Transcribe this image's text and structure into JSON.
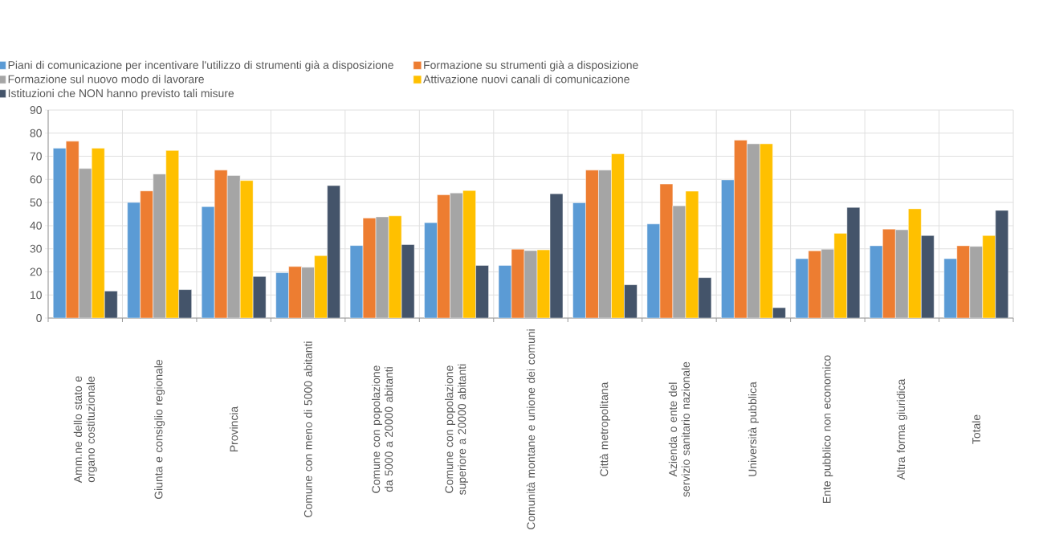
{
  "chart_data": {
    "type": "bar",
    "categories": [
      "Amm.ne dello stato  e organo costituzionale",
      "Giunta e consiglio regionale",
      "Provincia",
      "Comune con meno di 5000 abitanti",
      "Comune con popolazione da 5000 a 20000 abitanti",
      "Comune con popolazione superiore a 20000 abitanti",
      "Comunità montane e unione dei comuni",
      "Città metropolitana",
      "Azienda o ente del servizio sanitario nazionale",
      "Università pubblica",
      "Ente pubblico non economico",
      "Altra forma giuridica",
      "Totale"
    ],
    "series": [
      {
        "name": "Piani di comunicazione per incentivare l'utilizzo di strumenti già a disposizione",
        "color": "#5b9bd5",
        "values": [
          73.5,
          50,
          48.2,
          19.6,
          31.4,
          41.3,
          22.8,
          49.9,
          40.7,
          59.8,
          25.7,
          31.3,
          25.7
        ]
      },
      {
        "name": "Formazione su strumenti già a disposizione",
        "color": "#ed7d31",
        "values": [
          76.5,
          55,
          64,
          22.3,
          43.3,
          53.3,
          29.8,
          64,
          58,
          77,
          29.1,
          38.5,
          31.3
        ]
      },
      {
        "name": "Formazione sul nuovo modo di lavorare",
        "color": "#a5a5a5",
        "values": [
          64.7,
          62.3,
          61.7,
          22,
          43.8,
          54.1,
          29.2,
          64,
          48.6,
          75.4,
          29.8,
          38.2,
          31
        ]
      },
      {
        "name": "Attivazione nuovi canali di comunicazione",
        "color": "#ffc000",
        "values": [
          73.5,
          72.5,
          59.5,
          27,
          44.2,
          55.2,
          29.5,
          71.1,
          54.9,
          75.4,
          36.7,
          47.3,
          35.7
        ]
      },
      {
        "name": "Istituzioni che NON hanno previsto tali misure",
        "color": "#44546a",
        "values": [
          11.7,
          12.3,
          18,
          57.3,
          31.8,
          22.8,
          53.8,
          14.4,
          17.5,
          4.5,
          47.9,
          35.7,
          46.6
        ]
      }
    ],
    "ylim": [
      0,
      90
    ],
    "yticks": [
      0,
      10,
      20,
      30,
      40,
      50,
      60,
      70,
      80,
      90
    ],
    "grid": true,
    "legend": "top left"
  }
}
